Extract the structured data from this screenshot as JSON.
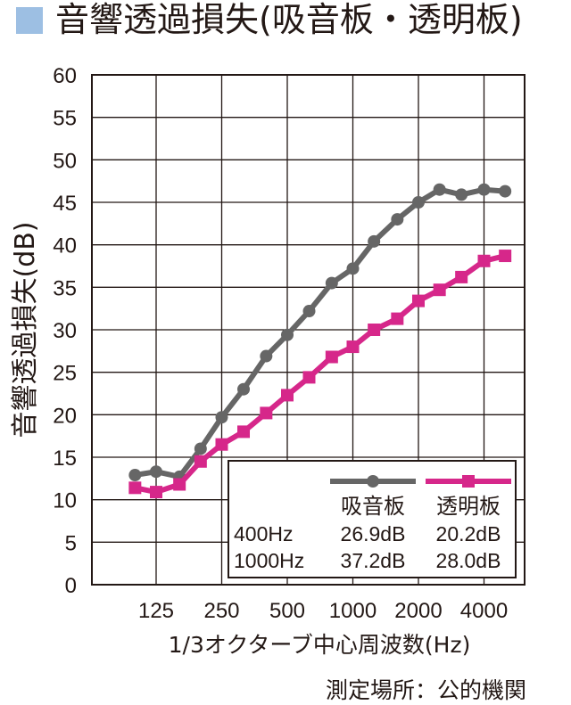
{
  "title": "音響透過損失(吸音板・透明板)",
  "title_swatch_color": "#9dbfe3",
  "source_note": "測定場所：公的機関",
  "chart_data": {
    "type": "line",
    "xlabel": "1/3オクターブ中心周波数(Hz)",
    "ylabel": "音響透過損失(dB)",
    "ylim": [
      0,
      60
    ],
    "yticks": [
      "0",
      "5",
      "10",
      "15",
      "20",
      "25",
      "30",
      "35",
      "40",
      "45",
      "50",
      "55",
      "60"
    ],
    "x_scale": "log (1/3 octave bands)",
    "x": [
      100,
      125,
      160,
      200,
      250,
      315,
      400,
      500,
      630,
      800,
      1000,
      1250,
      1600,
      2000,
      2500,
      3150,
      4000,
      5000
    ],
    "xticks": [
      {
        "value": 125,
        "label": "125"
      },
      {
        "value": 250,
        "label": "250"
      },
      {
        "value": 500,
        "label": "500"
      },
      {
        "value": 1000,
        "label": "1000"
      },
      {
        "value": 2000,
        "label": "2000"
      },
      {
        "value": 4000,
        "label": "4000"
      }
    ],
    "grid": true,
    "legend_position": "bottom-right",
    "series": [
      {
        "name": "吸音板",
        "color": "#666666",
        "marker": "circle",
        "values": [
          12.9,
          13.3,
          12.7,
          16.0,
          19.7,
          23.0,
          26.9,
          29.4,
          32.2,
          35.5,
          37.2,
          40.4,
          43.0,
          45.0,
          46.5,
          45.9,
          46.5,
          46.3
        ]
      },
      {
        "name": "透明板",
        "color": "#d6278a",
        "marker": "square",
        "values": [
          11.4,
          10.9,
          11.8,
          14.5,
          16.5,
          18.0,
          20.2,
          22.3,
          24.4,
          26.8,
          28.0,
          30.0,
          31.3,
          33.4,
          34.7,
          36.2,
          38.1,
          38.7
        ]
      }
    ],
    "summary_table": {
      "rows": [
        {
          "freq": "400Hz",
          "values": [
            "26.9dB",
            "20.2dB"
          ]
        },
        {
          "freq": "1000Hz",
          "values": [
            "37.2dB",
            "28.0dB"
          ]
        }
      ]
    }
  }
}
